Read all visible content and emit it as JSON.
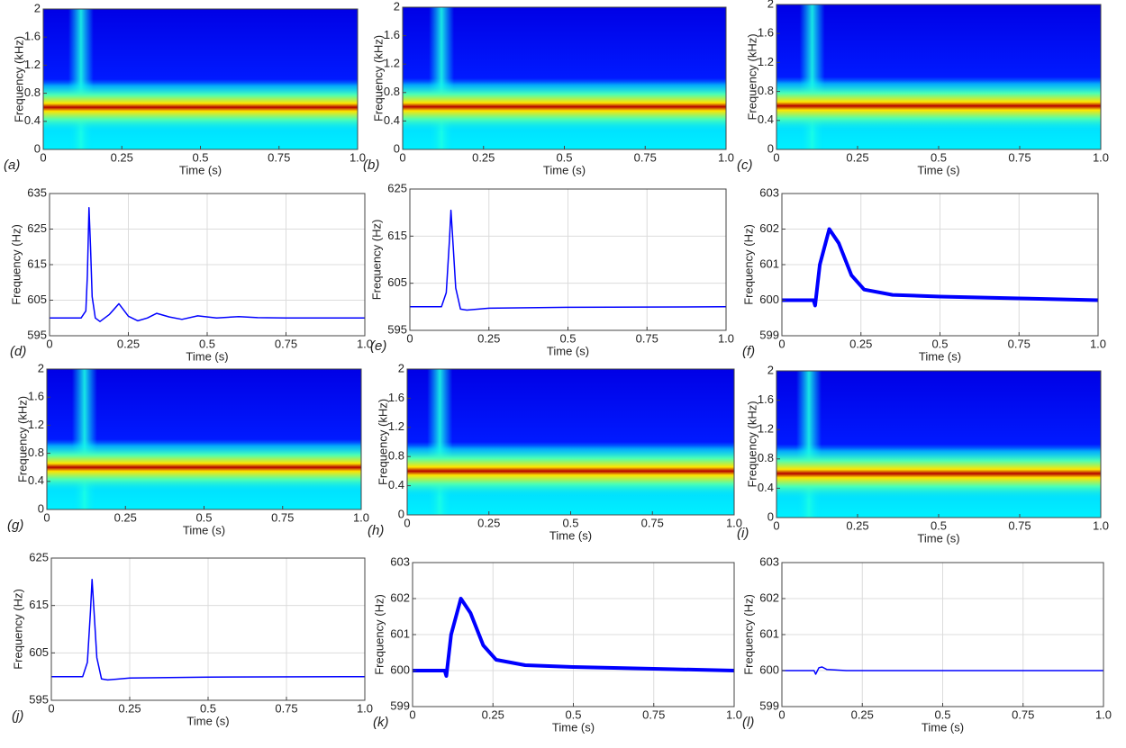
{
  "chart_data": [
    {
      "type": "spectrogram",
      "label": "(a)",
      "xlabel": "Time (s)",
      "ylabel": "Frequency (kHz)",
      "xlim": [
        0,
        1
      ],
      "ylim": [
        0,
        2
      ],
      "xticks": [
        0,
        0.25,
        0.5,
        0.75,
        {
          "value": 1,
          "label": "1.0"
        }
      ],
      "yticks": [
        0,
        0.4,
        0.8,
        1.2,
        1.6,
        2
      ],
      "colormap": "jet",
      "center_frequency": 0.6,
      "transient_time": 0.12
    },
    {
      "type": "spectrogram",
      "label": "(b)",
      "xlabel": "Time (s)",
      "ylabel": "Frequency (kHz)",
      "xlim": [
        0,
        1
      ],
      "ylim": [
        0,
        2
      ],
      "xticks": [
        0,
        0.25,
        0.5,
        0.75,
        {
          "value": 1,
          "label": "1.0"
        }
      ],
      "yticks": [
        0,
        0.4,
        0.8,
        1.2,
        1.6,
        2
      ],
      "colormap": "jet",
      "center_frequency": 0.6,
      "transient_time": 0.12
    },
    {
      "type": "spectrogram",
      "label": "(c)",
      "xlabel": "Time (s)",
      "ylabel": "Frequency (kHz)",
      "xlim": [
        0,
        1
      ],
      "ylim": [
        0,
        2
      ],
      "xticks": [
        0,
        0.25,
        0.5,
        0.75,
        {
          "value": 1,
          "label": "1.0"
        }
      ],
      "yticks": [
        0,
        0.4,
        0.8,
        1.2,
        1.6,
        2
      ],
      "colormap": "jet",
      "center_frequency": 0.6,
      "transient_time": 0.11
    },
    {
      "type": "line",
      "label": "(d)",
      "xlabel": "Time (s)",
      "ylabel": "Frequency (Hz)",
      "xlim": [
        0,
        1
      ],
      "ylim": [
        595,
        635
      ],
      "xticks": [
        0,
        0.25,
        0.5,
        0.75,
        {
          "value": 1,
          "label": "1.0"
        }
      ],
      "yticks": [
        595,
        605,
        615,
        625,
        635
      ],
      "grid": true,
      "color": "#0000ff",
      "x": [
        0,
        0.1,
        0.115,
        0.12,
        0.125,
        0.13,
        0.135,
        0.145,
        0.16,
        0.19,
        0.22,
        0.25,
        0.28,
        0.31,
        0.34,
        0.38,
        0.42,
        0.47,
        0.53,
        0.6,
        0.66,
        0.75,
        1
      ],
      "values": [
        600,
        600,
        602,
        612,
        631,
        620,
        606,
        600,
        599,
        601,
        604,
        600.5,
        599.2,
        600,
        601.3,
        600.3,
        599.6,
        600.6,
        600,
        600.4,
        600.1,
        600,
        600
      ]
    },
    {
      "type": "line",
      "label": "(e)",
      "xlabel": "Time (s)",
      "ylabel": "Frequency (Hz)",
      "xlim": [
        0,
        1
      ],
      "ylim": [
        595,
        625
      ],
      "xticks": [
        0,
        0.25,
        0.5,
        0.75,
        {
          "value": 1,
          "label": "1.0"
        }
      ],
      "yticks": [
        595,
        605,
        615,
        625
      ],
      "grid": true,
      "color": "#0000ff",
      "x": [
        0,
        0.1,
        0.115,
        0.125,
        0.13,
        0.135,
        0.145,
        0.16,
        0.18,
        0.25,
        0.5,
        1
      ],
      "values": [
        600,
        600,
        603,
        614,
        620.5,
        615,
        604,
        599.5,
        599.3,
        599.7,
        599.9,
        600
      ]
    },
    {
      "type": "line",
      "label": "(f)",
      "xlabel": "Time (s)",
      "ylabel": "Frequency (Hz)",
      "xlim": [
        0,
        1
      ],
      "ylim": [
        599,
        603
      ],
      "xticks": [
        0,
        0.25,
        0.5,
        0.75,
        {
          "value": 1,
          "label": "1.0"
        }
      ],
      "yticks": [
        599,
        600,
        601,
        602,
        603
      ],
      "grid": true,
      "color": "#0000ff",
      "x": [
        0,
        0.1,
        0.105,
        0.12,
        0.15,
        0.18,
        0.22,
        0.26,
        0.35,
        0.5,
        0.75,
        1
      ],
      "values": [
        600,
        600,
        599.85,
        601,
        602,
        601.6,
        600.7,
        600.3,
        600.15,
        600.1,
        600.05,
        600
      ]
    },
    {
      "type": "spectrogram",
      "label": "(g)",
      "xlabel": "Time (s)",
      "ylabel": "Frequency (kHz)",
      "xlim": [
        0,
        1
      ],
      "ylim": [
        0,
        2
      ],
      "xticks": [
        0,
        0.25,
        0.5,
        0.75,
        {
          "value": 1,
          "label": "1.0"
        }
      ],
      "yticks": [
        0,
        0.4,
        0.8,
        1.2,
        1.6,
        2
      ],
      "colormap": "jet",
      "center_frequency": 0.6,
      "transient_time": 0.12
    },
    {
      "type": "spectrogram",
      "label": "(h)",
      "xlabel": "Time (s)",
      "ylabel": "Frequency (kHz)",
      "xlim": [
        0,
        1
      ],
      "ylim": [
        0,
        2
      ],
      "xticks": [
        0,
        0.25,
        0.5,
        0.75,
        {
          "value": 1,
          "label": "1.0"
        }
      ],
      "yticks": [
        0,
        0.4,
        0.8,
        1.2,
        1.6,
        2
      ],
      "colormap": "jet",
      "center_frequency": 0.6,
      "transient_time": 0.1
    },
    {
      "type": "spectrogram",
      "label": "(i)",
      "xlabel": "Time (s)",
      "ylabel": "Frequency (kHz)",
      "xlim": [
        0,
        1
      ],
      "ylim": [
        0,
        2
      ],
      "xticks": [
        0,
        0.25,
        0.5,
        0.75,
        {
          "value": 1,
          "label": "1.0"
        }
      ],
      "yticks": [
        0,
        0.4,
        0.8,
        1.2,
        1.6,
        2
      ],
      "colormap": "jet",
      "center_frequency": 0.6,
      "transient_time": 0.1
    },
    {
      "type": "line",
      "label": "(j)",
      "xlabel": "Time (s)",
      "ylabel": "Frequency (Hz)",
      "xlim": [
        0,
        1
      ],
      "ylim": [
        595,
        625
      ],
      "xticks": [
        0,
        0.25,
        0.5,
        0.75,
        {
          "value": 1,
          "label": "1.0"
        }
      ],
      "yticks": [
        595,
        605,
        615,
        625
      ],
      "grid": true,
      "color": "#0000ff",
      "x": [
        0,
        0.1,
        0.115,
        0.125,
        0.13,
        0.135,
        0.145,
        0.16,
        0.18,
        0.25,
        0.5,
        1
      ],
      "values": [
        600,
        600,
        603,
        614,
        620.5,
        615,
        604,
        599.5,
        599.3,
        599.7,
        599.9,
        600
      ]
    },
    {
      "type": "line",
      "label": "(k)",
      "xlabel": "Time (s)",
      "ylabel": "Frequency (Hz)",
      "xlim": [
        0,
        1
      ],
      "ylim": [
        599,
        603
      ],
      "xticks": [
        0,
        0.25,
        0.5,
        0.75,
        {
          "value": 1,
          "label": "1.0"
        }
      ],
      "yticks": [
        599,
        600,
        601,
        602,
        603
      ],
      "grid": true,
      "color": "#0000ff",
      "x": [
        0,
        0.1,
        0.105,
        0.12,
        0.15,
        0.18,
        0.22,
        0.26,
        0.35,
        0.5,
        0.75,
        1
      ],
      "values": [
        600,
        600,
        599.85,
        601,
        602,
        601.6,
        600.7,
        600.3,
        600.15,
        600.1,
        600.05,
        600
      ]
    },
    {
      "type": "line",
      "label": "(l)",
      "xlabel": "Time (s)",
      "ylabel": "Frequency (Hz)",
      "xlim": [
        0,
        1
      ],
      "ylim": [
        599,
        603
      ],
      "xticks": [
        0,
        0.25,
        0.5,
        0.75,
        {
          "value": 1,
          "label": "1.0"
        }
      ],
      "yticks": [
        599,
        600,
        601,
        602,
        603
      ],
      "grid": true,
      "color": "#0000ff",
      "x": [
        0,
        0.1,
        0.105,
        0.115,
        0.125,
        0.14,
        0.2,
        1
      ],
      "values": [
        600,
        600,
        599.9,
        600.08,
        600.1,
        600.03,
        600,
        600
      ]
    }
  ]
}
